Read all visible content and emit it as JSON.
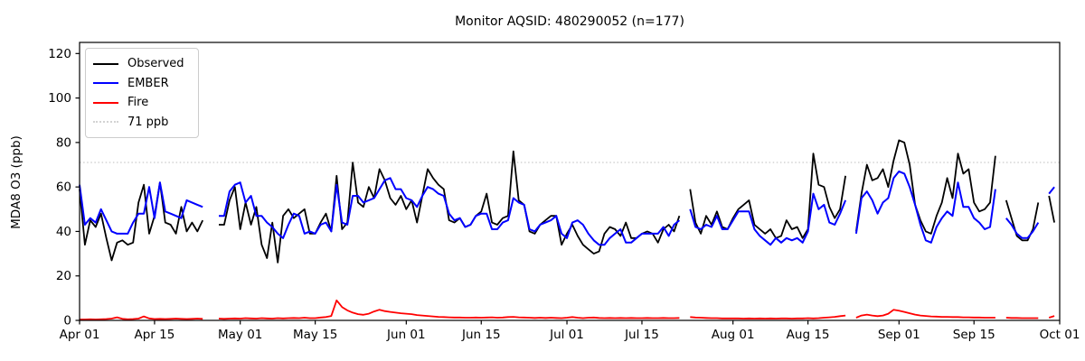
{
  "chart_data": {
    "type": "line",
    "title": "Monitor AQSID: 480290052 (n=177)",
    "ylabel": "MDA8 O3 (ppb)",
    "xlabel": "",
    "ylim": [
      0,
      125
    ],
    "yticks": [
      0,
      20,
      40,
      60,
      80,
      100,
      120
    ],
    "x_range_days": 183,
    "x_start": "Apr 01",
    "x_end": "Oct 01",
    "grid": false,
    "legend_position": "upper left",
    "xticks": [
      {
        "label": "Apr 01",
        "day": 0
      },
      {
        "label": "Apr 15",
        "day": 14
      },
      {
        "label": "May 01",
        "day": 30
      },
      {
        "label": "May 15",
        "day": 44
      },
      {
        "label": "Jun 01",
        "day": 61
      },
      {
        "label": "Jun 15",
        "day": 75
      },
      {
        "label": "Jul 01",
        "day": 91
      },
      {
        "label": "Jul 15",
        "day": 105
      },
      {
        "label": "Aug 01",
        "day": 122
      },
      {
        "label": "Aug 15",
        "day": 136
      },
      {
        "label": "Sep 01",
        "day": 153
      },
      {
        "label": "Sep 15",
        "day": 167
      },
      {
        "label": "Oct 01",
        "day": 183
      }
    ],
    "threshold": {
      "label": "71 ppb",
      "value": 71,
      "color": "#d3d3d3",
      "style": "dotted"
    },
    "legend": [
      {
        "label": "Observed",
        "color": "#000000",
        "style": "solid"
      },
      {
        "label": "EMBER",
        "color": "#0000ff",
        "style": "solid"
      },
      {
        "label": "Fire",
        "color": "#ff0000",
        "style": "solid"
      },
      {
        "label": "71 ppb",
        "color": "#d3d3d3",
        "style": "dotted"
      }
    ],
    "series": [
      {
        "name": "Observed",
        "color": "#000000",
        "width": 1.8,
        "values": [
          59,
          34,
          45,
          42,
          48,
          37,
          27,
          35,
          36,
          34,
          35,
          53,
          61,
          39,
          47,
          62,
          44,
          43,
          39,
          51,
          40,
          44,
          40,
          45,
          null,
          null,
          43,
          43,
          54,
          60,
          41,
          53,
          43,
          51,
          34,
          28,
          44,
          26,
          47,
          50,
          46,
          48,
          50,
          39,
          39,
          44,
          48,
          40,
          65,
          41,
          44,
          71,
          53,
          51,
          60,
          55,
          68,
          63,
          55,
          52,
          56,
          50,
          54,
          44,
          56,
          68,
          64,
          61,
          59,
          45,
          44,
          46,
          42,
          43,
          47,
          49,
          57,
          44,
          43,
          46,
          47,
          76,
          54,
          52,
          40,
          39,
          43,
          45,
          47,
          47,
          34,
          39,
          43,
          38,
          34,
          32,
          30,
          31,
          39,
          42,
          41,
          38,
          44,
          37,
          37,
          39,
          40,
          39,
          35,
          41,
          43,
          40,
          47,
          null,
          59,
          44,
          39,
          47,
          43,
          49,
          42,
          41,
          46,
          50,
          52,
          54,
          43,
          41,
          39,
          41,
          37,
          38,
          45,
          41,
          42,
          37,
          41,
          75,
          61,
          60,
          51,
          46,
          50,
          65,
          null,
          40,
          57,
          70,
          63,
          64,
          68,
          60,
          72,
          81,
          80,
          70,
          52,
          45,
          40,
          39,
          47,
          53,
          64,
          55,
          75,
          66,
          68,
          53,
          49,
          50,
          53,
          74,
          null,
          54,
          46,
          38,
          36,
          36,
          41,
          53,
          null,
          56,
          44
        ]
      },
      {
        "name": "EMBER",
        "color": "#0000ff",
        "width": 2.0,
        "values": [
          61,
          43,
          46,
          44,
          50,
          45,
          40,
          39,
          39,
          39,
          44,
          48,
          48,
          60,
          46,
          62,
          49,
          48,
          47,
          46,
          54,
          53,
          52,
          51,
          null,
          null,
          47,
          47,
          58,
          61,
          62,
          53,
          56,
          47,
          47,
          44,
          42,
          39,
          37,
          43,
          48,
          47,
          39,
          40,
          39,
          43,
          44,
          40,
          61,
          44,
          43,
          56,
          56,
          53,
          54,
          55,
          59,
          63,
          64,
          59,
          59,
          55,
          54,
          51,
          56,
          60,
          59,
          57,
          56,
          48,
          45,
          46,
          42,
          43,
          47,
          48,
          48,
          41,
          41,
          44,
          45,
          55,
          53,
          52,
          41,
          40,
          43,
          44,
          45,
          47,
          39,
          37,
          44,
          45,
          43,
          39,
          36,
          34,
          34,
          37,
          39,
          41,
          35,
          35,
          37,
          39,
          39,
          39,
          39,
          42,
          38,
          43,
          45,
          null,
          50,
          42,
          41,
          43,
          42,
          47,
          41,
          41,
          45,
          49,
          49,
          49,
          41,
          38,
          36,
          34,
          37,
          35,
          37,
          36,
          37,
          35,
          40,
          57,
          50,
          52,
          44,
          43,
          48,
          54,
          null,
          39,
          55,
          58,
          54,
          48,
          53,
          55,
          64,
          67,
          66,
          60,
          52,
          43,
          36,
          35,
          42,
          46,
          49,
          47,
          62,
          51,
          51,
          46,
          44,
          41,
          42,
          59,
          null,
          46,
          43,
          39,
          37,
          37,
          40,
          44,
          null,
          57,
          60
        ]
      },
      {
        "name": "Fire",
        "color": "#ff0000",
        "width": 1.8,
        "values": [
          0.4,
          0.4,
          0.5,
          0.4,
          0.5,
          0.6,
          0.8,
          1.4,
          0.7,
          0.5,
          0.6,
          0.8,
          1.8,
          0.9,
          0.6,
          0.7,
          0.6,
          0.7,
          0.8,
          0.7,
          0.6,
          0.7,
          0.8,
          0.7,
          null,
          null,
          0.8,
          0.7,
          0.8,
          0.9,
          0.8,
          1.0,
          0.9,
          0.8,
          1.0,
          0.9,
          0.8,
          1.0,
          0.9,
          1.0,
          1.1,
          1.0,
          1.2,
          1.0,
          1.0,
          1.3,
          1.5,
          2.0,
          9.0,
          6.0,
          4.5,
          3.5,
          2.8,
          2.5,
          3.0,
          4.0,
          4.8,
          4.2,
          3.8,
          3.5,
          3.2,
          3.0,
          2.8,
          2.4,
          2.2,
          2.0,
          1.8,
          1.6,
          1.5,
          1.4,
          1.3,
          1.3,
          1.2,
          1.2,
          1.3,
          1.2,
          1.3,
          1.4,
          1.2,
          1.3,
          1.5,
          1.6,
          1.4,
          1.3,
          1.2,
          1.1,
          1.2,
          1.1,
          1.2,
          1.1,
          1.0,
          1.2,
          1.5,
          1.2,
          1.0,
          1.2,
          1.3,
          1.1,
          1.0,
          1.1,
          1.0,
          1.1,
          1.0,
          1.1,
          1.0,
          1.0,
          1.1,
          1.0,
          1.0,
          1.1,
          1.0,
          1.0,
          1.1,
          null,
          1.5,
          1.3,
          1.2,
          1.1,
          1.0,
          1.0,
          0.9,
          0.9,
          0.9,
          0.9,
          0.8,
          0.9,
          0.8,
          0.9,
          0.8,
          0.9,
          0.8,
          0.9,
          0.9,
          0.8,
          0.9,
          0.9,
          1.0,
          0.9,
          1.0,
          1.2,
          1.4,
          1.6,
          1.9,
          2.2,
          null,
          1.2,
          2.2,
          2.6,
          2.2,
          1.9,
          2.2,
          3.0,
          4.8,
          4.4,
          3.8,
          3.2,
          2.6,
          2.2,
          2.0,
          1.8,
          1.7,
          1.6,
          1.6,
          1.5,
          1.5,
          1.4,
          1.4,
          1.3,
          1.3,
          1.2,
          1.2,
          1.2,
          null,
          1.2,
          1.1,
          1.1,
          1.0,
          1.0,
          1.0,
          1.0,
          null,
          1.2,
          2.0
        ]
      }
    ]
  }
}
